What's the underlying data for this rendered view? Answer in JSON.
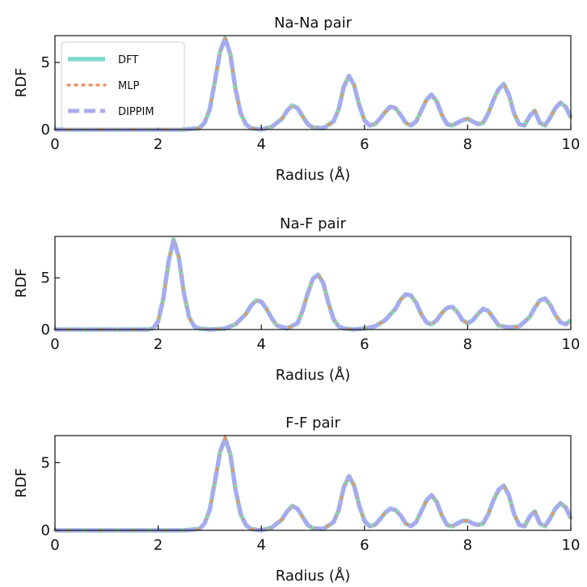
{
  "chart_data": [
    {
      "type": "line",
      "title": "Na-Na pair",
      "xlabel": "Radius (Å)",
      "ylabel": "RDF",
      "xlim": [
        0,
        10
      ],
      "ylim": [
        0,
        7
      ],
      "xticks": [
        0,
        2,
        4,
        6,
        8,
        10
      ],
      "yticks": [
        0,
        5
      ],
      "grid": false,
      "legend": "top-left",
      "series_names": [
        "DFT",
        "MLP",
        "DIPPIM"
      ],
      "x": [
        0,
        0.5,
        1,
        1.5,
        2,
        2.5,
        2.8,
        2.9,
        3.0,
        3.1,
        3.2,
        3.3,
        3.4,
        3.5,
        3.6,
        3.7,
        3.8,
        4.0,
        4.2,
        4.4,
        4.5,
        4.6,
        4.7,
        4.8,
        4.9,
        5.0,
        5.2,
        5.4,
        5.5,
        5.6,
        5.7,
        5.8,
        5.9,
        6.0,
        6.1,
        6.2,
        6.3,
        6.4,
        6.5,
        6.6,
        6.7,
        6.8,
        6.9,
        7.0,
        7.1,
        7.2,
        7.3,
        7.4,
        7.5,
        7.6,
        7.7,
        7.8,
        7.9,
        8.0,
        8.1,
        8.2,
        8.3,
        8.4,
        8.5,
        8.6,
        8.7,
        8.8,
        8.9,
        9.0,
        9.1,
        9.2,
        9.3,
        9.4,
        9.5,
        9.6,
        9.7,
        9.8,
        9.9,
        10.0
      ],
      "y": [
        0,
        0,
        0,
        0,
        0,
        0,
        0.1,
        0.5,
        1.5,
        3.6,
        5.8,
        6.8,
        5.6,
        3.0,
        1.2,
        0.4,
        0.1,
        0,
        0.2,
        0.8,
        1.4,
        1.8,
        1.6,
        1.0,
        0.4,
        0.15,
        0.1,
        0.6,
        1.5,
        3.2,
        4.0,
        3.3,
        1.8,
        0.7,
        0.3,
        0.4,
        0.8,
        1.3,
        1.7,
        1.6,
        1.1,
        0.5,
        0.3,
        0.6,
        1.4,
        2.2,
        2.6,
        2.1,
        1.1,
        0.4,
        0.3,
        0.5,
        0.7,
        0.8,
        0.6,
        0.4,
        0.5,
        1.2,
        2.2,
        3.0,
        3.4,
        2.6,
        1.2,
        0.4,
        0.3,
        1.0,
        1.4,
        0.5,
        0.3,
        0.9,
        1.6,
        2.0,
        1.7,
        0.9
      ],
      "colors": {
        "DFT": "#80d8cc",
        "MLP": "#e39468",
        "DIPPIM": "#a8aaf0"
      }
    },
    {
      "type": "line",
      "title": "Na-F pair",
      "xlabel": "Radius (Å)",
      "ylabel": "RDF",
      "xlim": [
        0,
        10
      ],
      "ylim": [
        0,
        9
      ],
      "xticks": [
        0,
        2,
        4,
        6,
        8,
        10
      ],
      "yticks": [
        0,
        5
      ],
      "grid": false,
      "x": [
        0,
        0.5,
        1,
        1.5,
        1.8,
        1.9,
        2.0,
        2.1,
        2.2,
        2.3,
        2.4,
        2.5,
        2.6,
        2.7,
        2.8,
        3.0,
        3.3,
        3.5,
        3.7,
        3.8,
        3.9,
        4.0,
        4.1,
        4.2,
        4.3,
        4.5,
        4.7,
        4.8,
        4.9,
        5.0,
        5.1,
        5.2,
        5.3,
        5.4,
        5.5,
        5.6,
        5.8,
        6.0,
        6.2,
        6.4,
        6.6,
        6.7,
        6.8,
        6.9,
        7.0,
        7.1,
        7.2,
        7.3,
        7.4,
        7.5,
        7.6,
        7.7,
        7.8,
        7.9,
        8.0,
        8.1,
        8.2,
        8.3,
        8.4,
        8.5,
        8.6,
        8.8,
        9.0,
        9.2,
        9.3,
        9.4,
        9.5,
        9.6,
        9.7,
        9.8,
        9.9,
        10.0
      ],
      "y": [
        0,
        0,
        0,
        0,
        0,
        0.1,
        0.8,
        3.0,
        6.5,
        8.7,
        7.0,
        3.5,
        1.2,
        0.3,
        0.1,
        0,
        0.1,
        0.5,
        1.5,
        2.3,
        2.8,
        2.7,
        2.0,
        1.1,
        0.4,
        0.1,
        0.6,
        1.8,
        3.5,
        4.9,
        5.3,
        4.5,
        2.6,
        1.0,
        0.3,
        0.1,
        0,
        0.1,
        0.3,
        0.9,
        2.0,
        2.9,
        3.4,
        3.3,
        2.6,
        1.5,
        0.7,
        0.5,
        0.9,
        1.6,
        2.1,
        2.2,
        1.7,
        0.9,
        0.6,
        0.9,
        1.5,
        2.0,
        1.8,
        1.1,
        0.4,
        0.2,
        0.3,
        1.2,
        2.1,
        2.8,
        3.0,
        2.4,
        1.4,
        0.7,
        0.5,
        0.9
      ]
    },
    {
      "type": "line",
      "title": "F-F pair",
      "xlabel": "Radius (Å)",
      "ylabel": "RDF",
      "xlim": [
        0,
        10
      ],
      "ylim": [
        0,
        7
      ],
      "xticks": [
        0,
        2,
        4,
        6,
        8,
        10
      ],
      "yticks": [
        0,
        5
      ],
      "grid": false,
      "x": [
        0,
        0.5,
        1,
        1.5,
        2,
        2.5,
        2.8,
        2.9,
        3.0,
        3.1,
        3.2,
        3.3,
        3.4,
        3.5,
        3.6,
        3.7,
        3.8,
        4.0,
        4.2,
        4.4,
        4.5,
        4.6,
        4.7,
        4.8,
        4.9,
        5.0,
        5.2,
        5.4,
        5.5,
        5.6,
        5.7,
        5.8,
        5.9,
        6.0,
        6.1,
        6.2,
        6.3,
        6.4,
        6.5,
        6.6,
        6.7,
        6.8,
        6.9,
        7.0,
        7.1,
        7.2,
        7.3,
        7.4,
        7.5,
        7.6,
        7.7,
        7.8,
        7.9,
        8.0,
        8.1,
        8.2,
        8.3,
        8.4,
        8.5,
        8.6,
        8.7,
        8.8,
        8.9,
        9.0,
        9.1,
        9.2,
        9.3,
        9.4,
        9.5,
        9.6,
        9.7,
        9.8,
        9.9,
        10.0
      ],
      "y": [
        0,
        0,
        0,
        0,
        0,
        0,
        0.1,
        0.5,
        1.5,
        3.6,
        5.8,
        6.8,
        5.6,
        3.0,
        1.2,
        0.4,
        0.1,
        0,
        0.2,
        0.8,
        1.4,
        1.8,
        1.6,
        1.0,
        0.4,
        0.15,
        0.1,
        0.6,
        1.5,
        3.2,
        4.0,
        3.3,
        1.8,
        0.7,
        0.3,
        0.4,
        0.8,
        1.3,
        1.6,
        1.5,
        1.1,
        0.5,
        0.3,
        0.6,
        1.4,
        2.2,
        2.6,
        2.1,
        1.1,
        0.4,
        0.3,
        0.5,
        0.7,
        0.7,
        0.5,
        0.4,
        0.5,
        1.2,
        2.2,
        3.0,
        3.3,
        2.6,
        1.2,
        0.4,
        0.3,
        1.0,
        1.4,
        0.5,
        0.3,
        0.9,
        1.6,
        2.0,
        1.7,
        0.9
      ]
    }
  ]
}
